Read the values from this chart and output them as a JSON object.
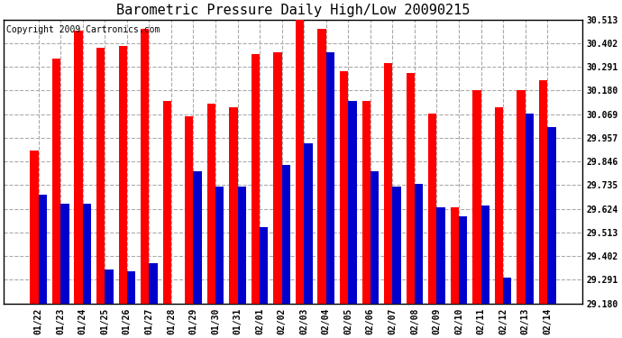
{
  "title": "Barometric Pressure Daily High/Low 20090215",
  "copyright": "Copyright 2009 Cartronics.com",
  "categories": [
    "01/22",
    "01/23",
    "01/24",
    "01/25",
    "01/26",
    "01/27",
    "01/28",
    "01/29",
    "01/30",
    "01/31",
    "02/01",
    "02/02",
    "02/03",
    "02/04",
    "02/05",
    "02/06",
    "02/07",
    "02/08",
    "02/09",
    "02/10",
    "02/11",
    "02/12",
    "02/13",
    "02/14"
  ],
  "highs": [
    29.9,
    30.33,
    30.46,
    30.38,
    30.39,
    30.47,
    30.13,
    30.06,
    30.12,
    30.1,
    30.35,
    30.36,
    30.51,
    30.47,
    30.27,
    30.13,
    30.31,
    30.26,
    30.07,
    29.63,
    30.18,
    30.1,
    30.18,
    30.23
  ],
  "lows": [
    29.69,
    29.65,
    29.65,
    29.34,
    29.33,
    29.37,
    29.18,
    29.8,
    29.73,
    29.73,
    29.54,
    29.83,
    29.93,
    30.36,
    30.13,
    29.8,
    29.73,
    29.74,
    29.63,
    29.59,
    29.64,
    29.3,
    30.07,
    30.01
  ],
  "high_color": "#ff0000",
  "low_color": "#0000cc",
  "bg_color": "#ffffff",
  "plot_bg_color": "#ffffff",
  "grid_color": "#aaaaaa",
  "yticks": [
    29.18,
    29.291,
    29.402,
    29.513,
    29.624,
    29.735,
    29.846,
    29.957,
    30.069,
    30.18,
    30.291,
    30.402,
    30.513
  ],
  "ymin": 29.18,
  "ymax": 30.513,
  "bar_width": 0.38,
  "title_fontsize": 11,
  "tick_fontsize": 7,
  "copyright_fontsize": 7
}
